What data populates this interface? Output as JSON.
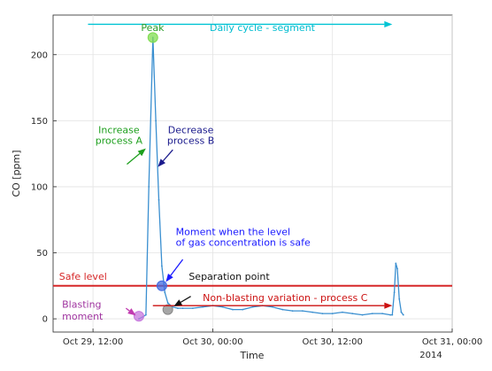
{
  "chart_data": {
    "type": "line",
    "xlabel": "Time",
    "ylabel": "CO [ppm]",
    "x_unit": "hours",
    "xlim": [
      -4,
      36
    ],
    "ylim": [
      -10,
      230
    ],
    "x_ticks": [
      {
        "x": 0,
        "label": "Oct 29, 12:00"
      },
      {
        "x": 12,
        "label": "Oct 30, 00:00"
      },
      {
        "x": 24,
        "label": "Oct 30, 12:00"
      },
      {
        "x": 36,
        "label": "Oct 31, 00:00"
      }
    ],
    "x_tick_year": "2014",
    "y_ticks": [
      0,
      50,
      100,
      150,
      200
    ],
    "grid": true,
    "series": [
      {
        "color": "#3a8fd0",
        "x": [
          4.6,
          5.0,
          5.3,
          5.6,
          6.0,
          6.3,
          6.6,
          6.9,
          7.2,
          7.5,
          8.0,
          8.5,
          9.0,
          10.0,
          11.0,
          12.0,
          13.0,
          14.0,
          15.0,
          16.0,
          17.0,
          18.0,
          19.0,
          20.0,
          21.0,
          22.0,
          23.0,
          24.0,
          25.0,
          26.0,
          27.0,
          28.0,
          29.0,
          29.8,
          30.0,
          30.2,
          30.35,
          30.5,
          30.7,
          30.9,
          31.1
        ],
        "y": [
          0,
          1.5,
          3,
          100,
          213,
          150,
          90,
          40,
          20,
          12,
          9,
          8,
          8,
          8,
          9,
          10,
          9,
          7,
          7,
          9,
          10,
          9,
          7,
          6,
          6,
          5,
          4,
          4,
          5,
          4,
          3,
          4,
          4,
          3,
          3,
          20,
          42,
          38,
          15,
          5,
          3
        ]
      }
    ],
    "safe_level": {
      "label": "Safe level",
      "y": 25,
      "color": "#d62728"
    },
    "markers": [
      {
        "x": 6.0,
        "y": 213,
        "color": "#7fdc4f"
      },
      {
        "x": 4.6,
        "y": 2,
        "color": "#c678dd"
      },
      {
        "x": 6.9,
        "y": 25,
        "color": "#4169e1"
      },
      {
        "x": 7.5,
        "y": 7,
        "color": "#888888"
      }
    ],
    "arrows": [
      {
        "from": [
          -0.5,
          223
        ],
        "to": [
          30.0,
          223
        ],
        "color": "#00c4d4"
      },
      {
        "from": [
          6.0,
          10.0
        ],
        "to": [
          30.0,
          10.0
        ],
        "color": "#cc1111"
      },
      {
        "from": [
          3.3,
          8.0
        ],
        "to": [
          4.3,
          2.5
        ],
        "color": "#c13ab0"
      },
      {
        "from": [
          9.0,
          45.0
        ],
        "to": [
          7.3,
          28.0
        ],
        "color": "#1a1aff"
      },
      {
        "from": [
          9.8,
          17.0
        ],
        "to": [
          8.1,
          9.5
        ],
        "color": "#111111"
      },
      {
        "from": [
          3.4,
          117.0
        ],
        "to": [
          5.3,
          129.0
        ],
        "color": "#1d9f1d"
      },
      {
        "from": [
          8.0,
          128.0
        ],
        "to": [
          6.5,
          115.0
        ],
        "color": "#1a1a8c"
      }
    ],
    "annotations": [
      {
        "text": "Peak",
        "x": 5.97,
        "y": 218,
        "anchor": "middle",
        "color": "#2a9d2a"
      },
      {
        "text": "Daily cycle - segment",
        "x": 11.7,
        "y": 218,
        "anchor": "start",
        "color": "#00bcd0"
      },
      {
        "text": "Increase",
        "x": 2.6,
        "y": 140.5,
        "anchor": "middle",
        "color": "#1d9f1d"
      },
      {
        "text": "process A",
        "x": 2.6,
        "y": 132.5,
        "anchor": "middle",
        "color": "#1d9f1d"
      },
      {
        "text": "Decrease",
        "x": 9.8,
        "y": 140.5,
        "anchor": "middle",
        "color": "#1a1a8c"
      },
      {
        "text": "process B",
        "x": 9.8,
        "y": 132.5,
        "anchor": "middle",
        "color": "#1a1a8c"
      },
      {
        "text": "Moment when the level",
        "x": 8.3,
        "y": 63.5,
        "anchor": "start",
        "color": "#1a1aff"
      },
      {
        "text": "of gas concentration is safe",
        "x": 8.3,
        "y": 55.5,
        "anchor": "start",
        "color": "#1a1aff"
      },
      {
        "text": "Safe level",
        "x": -3.4,
        "y": 29.5,
        "anchor": "start",
        "color": "#d62728"
      },
      {
        "text": "Separation point",
        "x": 9.6,
        "y": 29.5,
        "anchor": "start",
        "color": "#111111"
      },
      {
        "text": "Non-blasting variation - process C",
        "x": 11.0,
        "y": 13.5,
        "anchor": "start",
        "color": "#cc1111"
      },
      {
        "text": "Blasting",
        "x": -3.1,
        "y": 8.5,
        "anchor": "start",
        "color": "#a035a0"
      },
      {
        "text": "moment",
        "x": -3.1,
        "y": -0.5,
        "anchor": "start",
        "color": "#a035a0"
      }
    ]
  }
}
